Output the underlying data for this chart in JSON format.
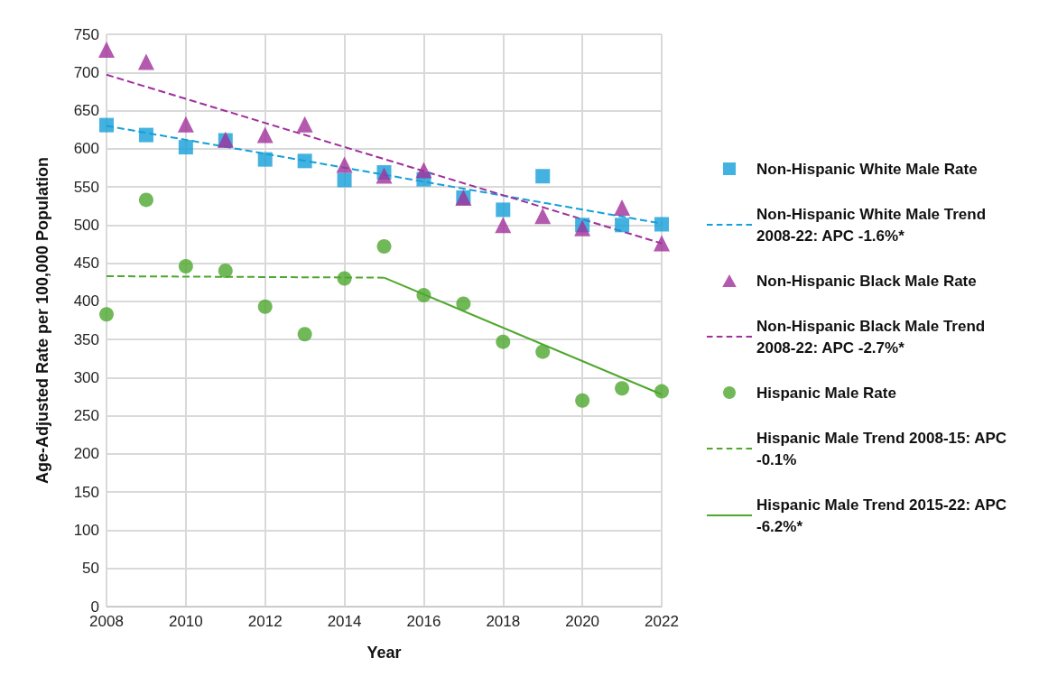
{
  "chart_data": {
    "type": "scatter",
    "xlabel": "Year",
    "ylabel": "Age-Adjusted Rate per 100,000 Population",
    "xlim": [
      2008,
      2022
    ],
    "xticks": [
      2008,
      2010,
      2012,
      2014,
      2016,
      2018,
      2020,
      2022
    ],
    "ylim": [
      0,
      750
    ],
    "yticks": [
      0,
      50,
      100,
      150,
      200,
      250,
      300,
      350,
      400,
      450,
      500,
      550,
      600,
      650,
      700,
      750
    ],
    "grid": true,
    "legend": "right",
    "series": [
      {
        "name": "Non-Hispanic White Male Rate",
        "type": "scatter",
        "marker": "square",
        "color": "#149fd8",
        "x": [
          2008,
          2009,
          2010,
          2011,
          2012,
          2013,
          2014,
          2015,
          2016,
          2017,
          2018,
          2019,
          2020,
          2021,
          2022
        ],
        "values": [
          631,
          618,
          602,
          611,
          586,
          584,
          559,
          569,
          560,
          536,
          520,
          564,
          500,
          500,
          501
        ]
      },
      {
        "name": "Non-Hispanic White Male Trend 2008-22: APC -1.6%*",
        "type": "line",
        "marker": "none",
        "line_style": "dashed",
        "color": "#149fd8",
        "x": [
          2008,
          2022
        ],
        "values": [
          630,
          502
        ]
      },
      {
        "name": "Non-Hispanic Black Male Rate",
        "type": "scatter",
        "marker": "triangle",
        "color": "#a0309a",
        "x": [
          2008,
          2009,
          2010,
          2011,
          2012,
          2013,
          2014,
          2015,
          2016,
          2017,
          2018,
          2019,
          2020,
          2021,
          2022
        ],
        "values": [
          730,
          714,
          632,
          612,
          618,
          632,
          579,
          565,
          572,
          536,
          500,
          512,
          496,
          523,
          476
        ]
      },
      {
        "name": "Non-Hispanic Black Male Trend 2008-22: APC -2.7%*",
        "type": "line",
        "marker": "none",
        "line_style": "dashed",
        "color": "#a0309a",
        "x": [
          2008,
          2022
        ],
        "values": [
          697,
          476
        ]
      },
      {
        "name": "Hispanic Male Rate",
        "type": "scatter",
        "marker": "circle",
        "color": "#4ea72e",
        "x": [
          2008,
          2009,
          2010,
          2011,
          2012,
          2013,
          2014,
          2015,
          2016,
          2017,
          2018,
          2019,
          2020,
          2021,
          2022
        ],
        "values": [
          383,
          533,
          446,
          440,
          393,
          357,
          430,
          472,
          408,
          397,
          347,
          334,
          270,
          286,
          282
        ]
      },
      {
        "name": "Hispanic Male Trend 2008-15: APC -0.1%",
        "type": "line",
        "marker": "none",
        "line_style": "dashed",
        "color": "#4ea72e",
        "x": [
          2008,
          2015
        ],
        "values": [
          433,
          431
        ]
      },
      {
        "name": "Hispanic Male Trend 2015-22: APC -6.2%*",
        "type": "line",
        "marker": "none",
        "line_style": "solid",
        "color": "#4ea72e",
        "x": [
          2015,
          2022
        ],
        "values": [
          431,
          278
        ]
      }
    ]
  }
}
